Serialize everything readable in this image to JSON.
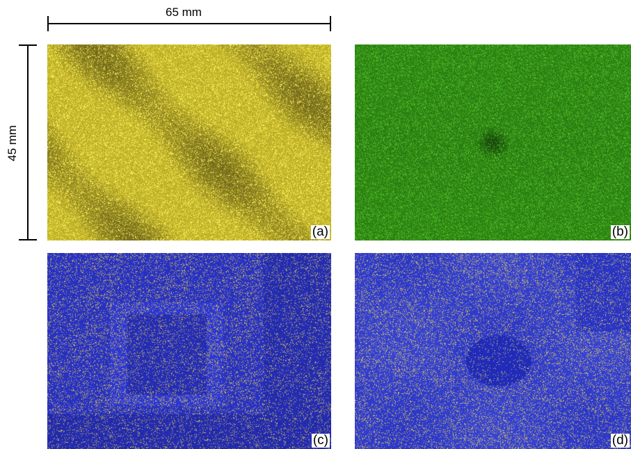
{
  "scale_bars": {
    "horizontal_label": "65 mm",
    "vertical_label": "45 mm"
  },
  "panels": [
    {
      "label": "(a)",
      "palette": {
        "base": "#c9bb2c",
        "dark": "#4a4417",
        "speck": "#fff25a"
      },
      "pattern": "diagonal-bands"
    },
    {
      "label": "(b)",
      "palette": {
        "base": "#2f8a14",
        "dark": "#10300a",
        "speck": "#55c32a"
      },
      "pattern": "central-dark-spot"
    },
    {
      "label": "(c)",
      "palette": {
        "base": "#2f3ad8",
        "dark": "#1a1f8c",
        "speck": "#c8b664"
      },
      "pattern": "square-frame"
    },
    {
      "label": "(d)",
      "palette": {
        "base": "#3a46d6",
        "dark": "#1b25b3",
        "speck": "#cbbc6a"
      },
      "pattern": "central-blob"
    }
  ]
}
